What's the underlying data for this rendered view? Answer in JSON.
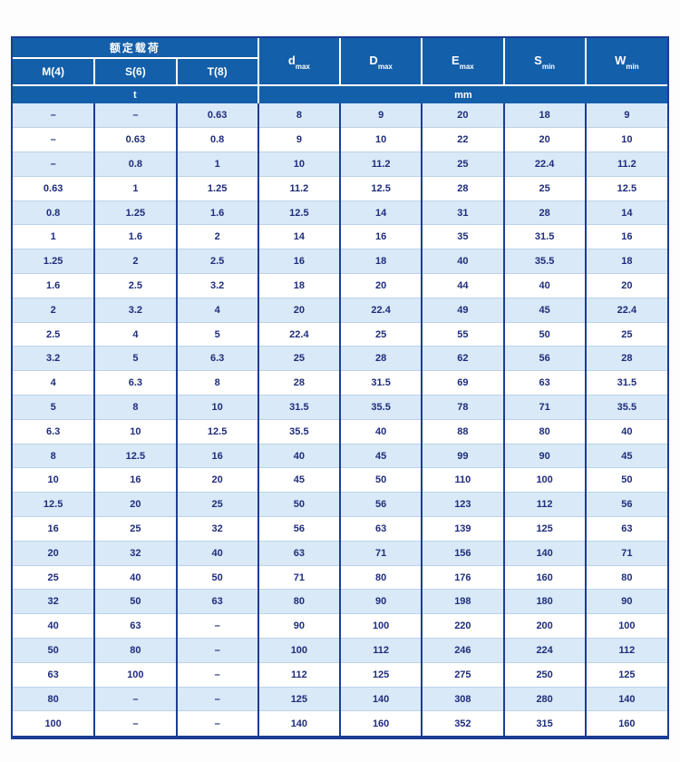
{
  "colors": {
    "header_bg": "#145fa9",
    "header_text": "#ffffff",
    "cell_text": "#1f2c7c",
    "row_alt_bg": "#d9e9f7",
    "row_bg": "#ffffff",
    "grid_vertical": "#1c3d94",
    "grid_horizontal": "#bcd2e8",
    "page_bg": "#fdfdfd"
  },
  "table": {
    "header": {
      "rated_load_label": "额定载荷",
      "load_columns": [
        "M(4)",
        "S(6)",
        "T(8)"
      ],
      "dim_columns": [
        {
          "base": "d",
          "sub": "max"
        },
        {
          "base": "D",
          "sub": "max"
        },
        {
          "base": "E",
          "sub": "max"
        },
        {
          "base": "S",
          "sub": "min"
        },
        {
          "base": "W",
          "sub": "min"
        }
      ],
      "load_unit": "t",
      "dim_unit": "mm"
    },
    "rows": [
      [
        "–",
        "–",
        "0.63",
        "8",
        "9",
        "20",
        "18",
        "9"
      ],
      [
        "–",
        "0.63",
        "0.8",
        "9",
        "10",
        "22",
        "20",
        "10"
      ],
      [
        "–",
        "0.8",
        "1",
        "10",
        "11.2",
        "25",
        "22.4",
        "11.2"
      ],
      [
        "0.63",
        "1",
        "1.25",
        "11.2",
        "12.5",
        "28",
        "25",
        "12.5"
      ],
      [
        "0.8",
        "1.25",
        "1.6",
        "12.5",
        "14",
        "31",
        "28",
        "14"
      ],
      [
        "1",
        "1.6",
        "2",
        "14",
        "16",
        "35",
        "31.5",
        "16"
      ],
      [
        "1.25",
        "2",
        "2.5",
        "16",
        "18",
        "40",
        "35.5",
        "18"
      ],
      [
        "1.6",
        "2.5",
        "3.2",
        "18",
        "20",
        "44",
        "40",
        "20"
      ],
      [
        "2",
        "3.2",
        "4",
        "20",
        "22.4",
        "49",
        "45",
        "22.4"
      ],
      [
        "2.5",
        "4",
        "5",
        "22.4",
        "25",
        "55",
        "50",
        "25"
      ],
      [
        "3.2",
        "5",
        "6.3",
        "25",
        "28",
        "62",
        "56",
        "28"
      ],
      [
        "4",
        "6.3",
        "8",
        "28",
        "31.5",
        "69",
        "63",
        "31.5"
      ],
      [
        "5",
        "8",
        "10",
        "31.5",
        "35.5",
        "78",
        "71",
        "35.5"
      ],
      [
        "6.3",
        "10",
        "12.5",
        "35.5",
        "40",
        "88",
        "80",
        "40"
      ],
      [
        "8",
        "12.5",
        "16",
        "40",
        "45",
        "99",
        "90",
        "45"
      ],
      [
        "10",
        "16",
        "20",
        "45",
        "50",
        "110",
        "100",
        "50"
      ],
      [
        "12.5",
        "20",
        "25",
        "50",
        "56",
        "123",
        "112",
        "56"
      ],
      [
        "16",
        "25",
        "32",
        "56",
        "63",
        "139",
        "125",
        "63"
      ],
      [
        "20",
        "32",
        "40",
        "63",
        "71",
        "156",
        "140",
        "71"
      ],
      [
        "25",
        "40",
        "50",
        "71",
        "80",
        "176",
        "160",
        "80"
      ],
      [
        "32",
        "50",
        "63",
        "80",
        "90",
        "198",
        "180",
        "90"
      ],
      [
        "40",
        "63",
        "–",
        "90",
        "100",
        "220",
        "200",
        "100"
      ],
      [
        "50",
        "80",
        "–",
        "100",
        "112",
        "246",
        "224",
        "112"
      ],
      [
        "63",
        "100",
        "–",
        "112",
        "125",
        "275",
        "250",
        "125"
      ],
      [
        "80",
        "–",
        "–",
        "125",
        "140",
        "308",
        "280",
        "140"
      ],
      [
        "100",
        "–",
        "–",
        "140",
        "160",
        "352",
        "315",
        "160"
      ]
    ]
  }
}
